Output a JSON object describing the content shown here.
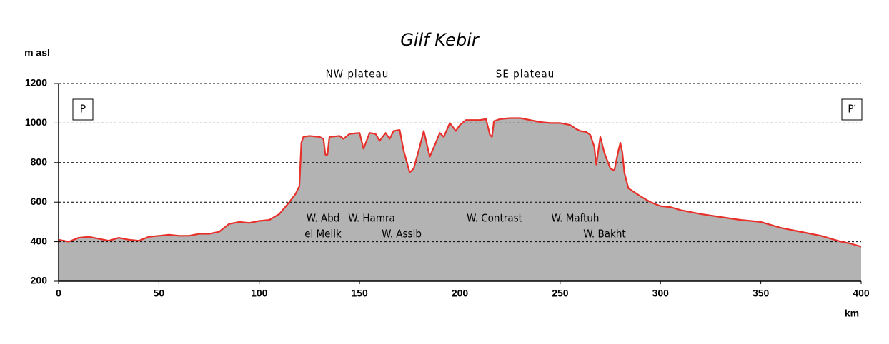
{
  "chart_data": {
    "type": "area",
    "title": "Gilf Kebir",
    "y_label": "m asl",
    "x_label": "km",
    "x": [
      0,
      5,
      10,
      15,
      20,
      25,
      30,
      35,
      40,
      45,
      50,
      55,
      60,
      65,
      70,
      75,
      80,
      85,
      90,
      95,
      100,
      105,
      110,
      115,
      118,
      120,
      121,
      122,
      125,
      130,
      132,
      133,
      134,
      135,
      140,
      142,
      145,
      150,
      152,
      155,
      158,
      160,
      163,
      165,
      167,
      170,
      172,
      175,
      177,
      180,
      182,
      185,
      188,
      190,
      192,
      195,
      198,
      200,
      203,
      210,
      213,
      215,
      216,
      217,
      220,
      225,
      230,
      235,
      240,
      245,
      250,
      255,
      258,
      260,
      263,
      265,
      267,
      268,
      270,
      272,
      275,
      277,
      279,
      280,
      281,
      282,
      284,
      290,
      295,
      300,
      305,
      310,
      320,
      330,
      340,
      350,
      360,
      370,
      380,
      390,
      395,
      400
    ],
    "values": [
      410,
      400,
      420,
      425,
      415,
      405,
      420,
      410,
      405,
      425,
      430,
      435,
      430,
      430,
      440,
      440,
      450,
      490,
      500,
      495,
      505,
      510,
      540,
      600,
      640,
      680,
      900,
      930,
      935,
      930,
      920,
      840,
      840,
      930,
      935,
      920,
      945,
      950,
      870,
      950,
      945,
      910,
      950,
      920,
      960,
      965,
      860,
      750,
      770,
      880,
      960,
      830,
      900,
      950,
      930,
      1000,
      960,
      990,
      1015,
      1015,
      1020,
      940,
      930,
      1010,
      1020,
      1025,
      1025,
      1015,
      1005,
      1000,
      1000,
      990,
      970,
      960,
      955,
      940,
      880,
      790,
      930,
      850,
      770,
      760,
      860,
      900,
      850,
      750,
      670,
      630,
      600,
      580,
      575,
      560,
      540,
      525,
      510,
      500,
      470,
      450,
      430,
      400,
      390,
      375
    ],
    "fill_color": "#b3b3b3",
    "line_color": "#e8302a",
    "xlim": [
      0,
      400
    ],
    "xticks": [
      0,
      50,
      100,
      150,
      200,
      250,
      300,
      350,
      400
    ],
    "ylim": [
      200,
      1200
    ],
    "yticks": [
      200,
      400,
      600,
      800,
      1000,
      1200
    ],
    "grid": true,
    "annotations": [
      {
        "lines": [
          "NW plateau"
        ]
      },
      {
        "lines": [
          "SE plateau"
        ]
      },
      {
        "lines": [
          "P"
        ]
      },
      {
        "lines": [
          "P′"
        ]
      },
      {
        "lines": [
          "W. Abd",
          "el Melik"
        ]
      },
      {
        "lines": [
          "W. Hamra"
        ]
      },
      {
        "lines": [
          "W. Assib"
        ]
      },
      {
        "lines": [
          "W. Contrast"
        ]
      },
      {
        "lines": [
          "W. Maftuh"
        ]
      },
      {
        "lines": [
          "W. Bakht"
        ]
      }
    ]
  }
}
